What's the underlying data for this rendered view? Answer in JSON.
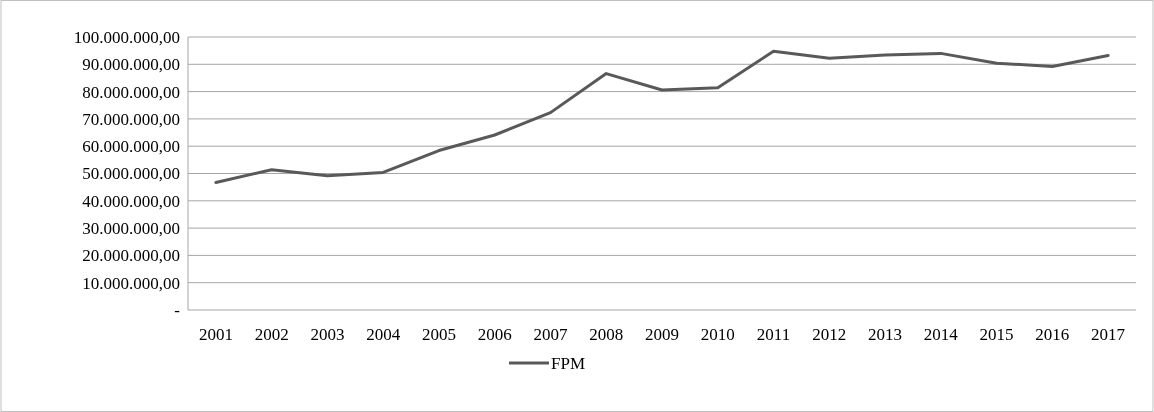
{
  "chart_data": {
    "type": "line",
    "categories": [
      "2001",
      "2002",
      "2003",
      "2004",
      "2005",
      "2006",
      "2007",
      "2008",
      "2009",
      "2010",
      "2011",
      "2012",
      "2013",
      "2014",
      "2015",
      "2016",
      "2017"
    ],
    "series": [
      {
        "name": "FPM",
        "color": "#595959",
        "values": [
          46700000,
          51400000,
          49200000,
          50400000,
          58400000,
          64100000,
          72300000,
          86600000,
          80600000,
          81400000,
          94800000,
          92200000,
          93400000,
          94000000,
          90400000,
          89200000,
          93200000
        ]
      }
    ],
    "ylim": [
      0,
      100000000
    ],
    "yticks": [
      {
        "value": 0,
        "label": "-"
      },
      {
        "value": 10000000,
        "label": "10.000.000,00"
      },
      {
        "value": 20000000,
        "label": "20.000.000,00"
      },
      {
        "value": 30000000,
        "label": "30.000.000,00"
      },
      {
        "value": 40000000,
        "label": "40.000.000,00"
      },
      {
        "value": 50000000,
        "label": "50.000.000,00"
      },
      {
        "value": 60000000,
        "label": "60.000.000,00"
      },
      {
        "value": 70000000,
        "label": "70.000.000,00"
      },
      {
        "value": 80000000,
        "label": "80.000.000,00"
      },
      {
        "value": 90000000,
        "label": "90.000.000,00"
      },
      {
        "value": 100000000,
        "label": "100.000.000,00"
      }
    ],
    "grid": "y",
    "legend": "bottom",
    "marker": "none",
    "line_style": "solid"
  }
}
